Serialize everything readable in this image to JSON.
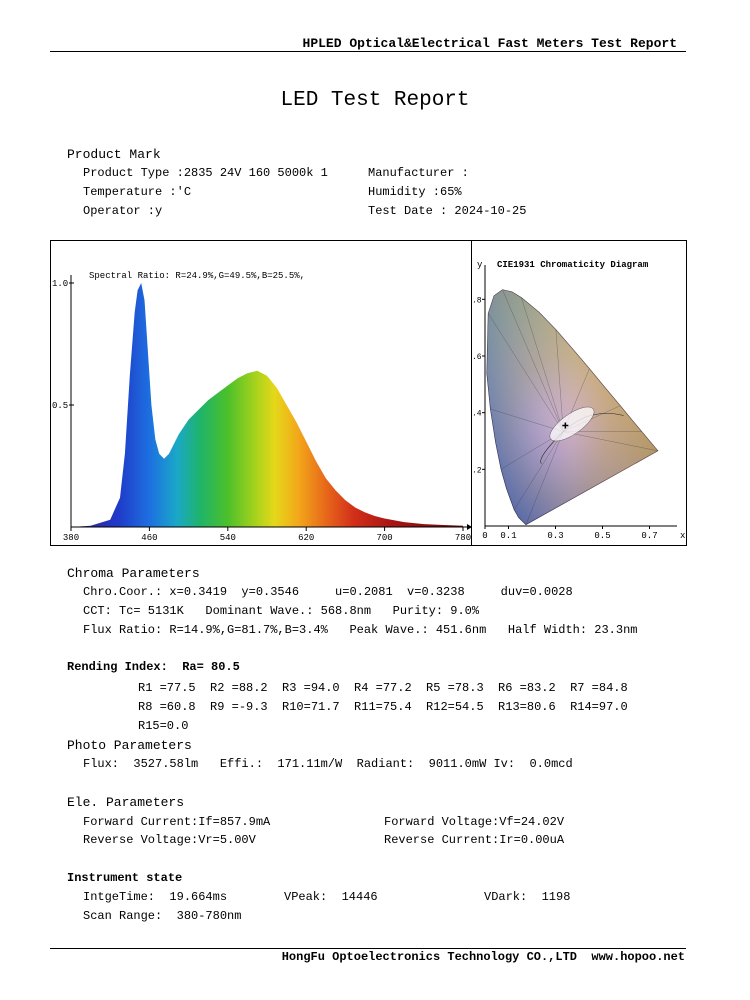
{
  "header": {
    "title": "HPLED Optical&Electrical Fast Meters Test Report"
  },
  "report_title": "LED Test Report",
  "product": {
    "section_title": "Product Mark",
    "product_type": "Product Type :2835 24V 160 5000k 1",
    "manufacturer": "Manufacturer :",
    "temperature": "Temperature :'C",
    "humidity": "Humidity :65%",
    "operator": "Operator :y",
    "test_date": "Test Date : 2024-10-25"
  },
  "chart_data": [
    {
      "type": "line",
      "title": "",
      "annotation": "Spectral Ratio:  R=24.9%,G=49.5%,B=25.5%,",
      "xlabel": "",
      "ylabel": "",
      "xlim": [
        380,
        780
      ],
      "ylim": [
        0,
        1.0
      ],
      "x_ticks": [
        "380",
        "460",
        "540",
        "620",
        "700",
        "780"
      ],
      "y_ticks": [
        "1.0",
        "0.5"
      ],
      "series": [
        {
          "x": [
            380,
            400,
            420,
            430,
            435,
            440,
            445,
            448,
            451.6,
            455,
            458,
            462,
            466,
            470,
            475,
            480,
            490,
            500,
            510,
            520,
            530,
            540,
            550,
            560,
            570,
            580,
            590,
            600,
            610,
            620,
            630,
            640,
            650,
            660,
            670,
            680,
            690,
            700,
            720,
            740,
            760,
            780
          ],
          "values": [
            0,
            0.005,
            0.03,
            0.12,
            0.3,
            0.62,
            0.88,
            0.97,
            1.0,
            0.93,
            0.75,
            0.5,
            0.36,
            0.3,
            0.28,
            0.3,
            0.38,
            0.44,
            0.48,
            0.52,
            0.55,
            0.58,
            0.61,
            0.63,
            0.64,
            0.62,
            0.57,
            0.5,
            0.43,
            0.35,
            0.27,
            0.2,
            0.15,
            0.11,
            0.08,
            0.06,
            0.045,
            0.035,
            0.02,
            0.012,
            0.008,
            0.005
          ]
        }
      ]
    },
    {
      "type": "scatter",
      "title": "CIE1931 Chromaticity Diagram",
      "xlabel": "x",
      "ylabel": "y",
      "x_ticks": [
        "0",
        "0.1",
        "0.3",
        "0.5",
        "0.7"
      ],
      "y_ticks": [
        ".8",
        ".6",
        ".4",
        ".2",
        "0"
      ],
      "xlim": [
        0,
        0.8
      ],
      "ylim": [
        0,
        0.9
      ],
      "point": {
        "x": 0.3419,
        "y": 0.3546
      }
    }
  ],
  "chroma": {
    "title": "Chroma Parameters",
    "line1": "Chro.Coor.: x=0.3419  y=0.3546     u=0.2081  v=0.3238     duv=0.0028",
    "line2": "CCT: Tc= 5131K   Dominant Wave.: 568.8nm   Purity: 9.0%",
    "line3": "Flux Ratio: R=14.9%,G=81.7%,B=3.4%   Peak Wave.: 451.6nm   Half Width: 23.3nm"
  },
  "rendering": {
    "title": "Rending Index:  Ra= 80.5",
    "row1": "R1 =77.5  R2 =88.2  R3 =94.0  R4 =77.2  R5 =78.3  R6 =83.2  R7 =84.8",
    "row2": "R8 =60.8  R9 =-9.3  R10=71.7  R11=75.4  R12=54.5  R13=80.6  R14=97.0",
    "row3": "R15=0.0"
  },
  "photo": {
    "title": "Photo Parameters",
    "line": "Flux:  3527.58lm   Effi.:  171.11m/W  Radiant:  9011.0mW Iv:  0.0mcd"
  },
  "ele": {
    "title": "Ele. Parameters",
    "forward_current": "Forward Current:If=857.9mA",
    "forward_voltage": "Forward Voltage:Vf=24.02V",
    "reverse_voltage": "Reverse Voltage:Vr=5.00V",
    "reverse_current": "Reverse Current:Ir=0.00uA"
  },
  "instrument": {
    "title": "Instrument state",
    "integ_time": "IntgeTime:  19.664ms",
    "vpeak": "VPeak:  14446",
    "vdark": "VDark:  1198",
    "scan_range": "Scan Range:  380-780nm"
  },
  "footer": {
    "text": "HongFu Optoelectronics Technology CO.,LTD  www.hopoo.net"
  }
}
